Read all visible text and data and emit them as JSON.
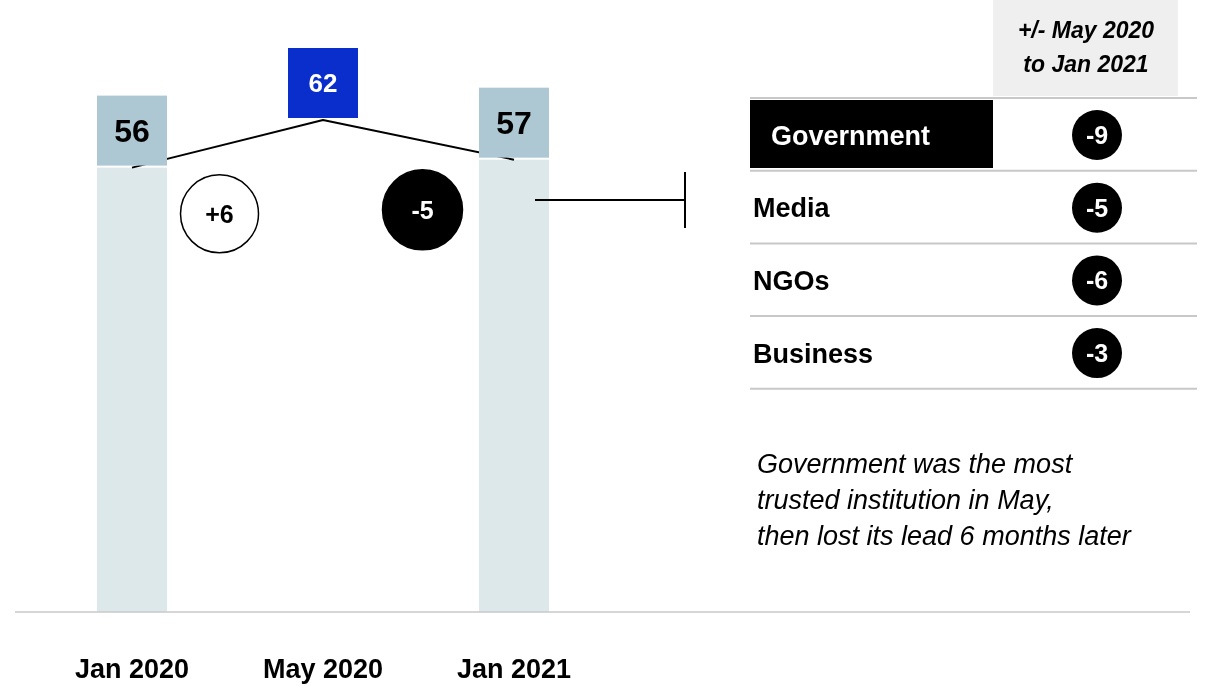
{
  "chart_data": [
    {
      "type": "bar",
      "categories": [
        "Jan 2020",
        "May 2020",
        "Jan 2021"
      ],
      "tick_labels": "x",
      "series": [
        {
          "type": "bar",
          "color": "#dde8eb",
          "values": [
            56,
            null,
            57
          ]
        },
        {
          "type": "line",
          "color": "#000000",
          "colors": [
            "#adc8d2",
            "#0a2ecc",
            "#adc8d2"
          ],
          "values": [
            56,
            62,
            57
          ],
          "value_labels": [
            "56",
            "62",
            "57"
          ]
        }
      ],
      "annotations": [
        "+6",
        "-5"
      ]
    },
    {
      "type": "other",
      "title": "+/- May 2020\nto Jan 2021",
      "categories": [
        "Government",
        "Media",
        "NGOs",
        "Business"
      ],
      "values": [
        -9,
        -5,
        -6,
        -3
      ],
      "colors": [
        "#000000",
        "#000000",
        "#000000",
        "#000000"
      ],
      "data_labels": true,
      "annotations": [
        "Government was the most\ntrusted institution in May,\nthen lost its lead 6 months later"
      ]
    }
  ]
}
